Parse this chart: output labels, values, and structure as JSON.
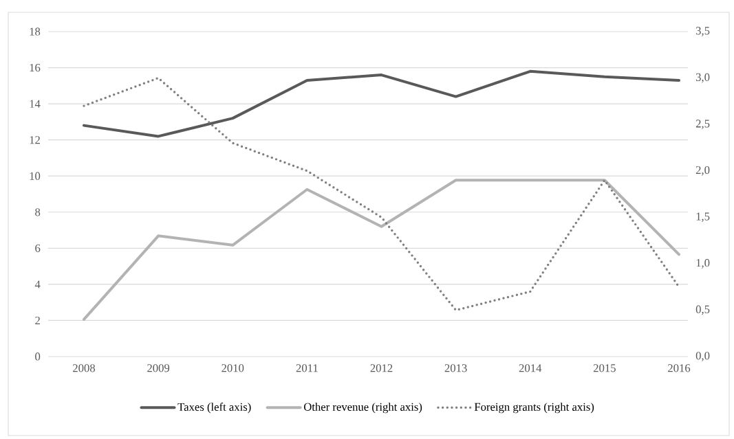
{
  "chart_data": {
    "type": "line",
    "categories": [
      "2008",
      "2009",
      "2010",
      "2011",
      "2012",
      "2013",
      "2014",
      "2015",
      "2016"
    ],
    "ylim": [
      0,
      18
    ],
    "yticks": [
      0,
      2,
      4,
      6,
      8,
      10,
      12,
      14,
      16,
      18
    ],
    "y2lim": [
      0,
      3.5
    ],
    "y2ticks": [
      {
        "value": 0,
        "label": "0,0"
      },
      {
        "value": 0.5,
        "label": "0,5"
      },
      {
        "value": 1,
        "label": "1,0"
      },
      {
        "value": 1.5,
        "label": "1,5"
      },
      {
        "value": 2,
        "label": "2,0"
      },
      {
        "value": 2.5,
        "label": "2,5"
      },
      {
        "value": 3,
        "label": "3,0"
      },
      {
        "value": 3.5,
        "label": "3,5"
      }
    ],
    "grid": "y",
    "legend": "bottom",
    "series": [
      {
        "name": "Taxes (left axis)",
        "color": "#595959",
        "line_style": "solid",
        "values": [
          12.8,
          12.2,
          13.2,
          15.3,
          15.6,
          14.4,
          15.8,
          15.5,
          15.3
        ]
      },
      {
        "name": "Other revenue (right axis)",
        "color": "#b3b3b3",
        "line_style": "solid",
        "axis": "y2",
        "values": [
          0.4,
          1.3,
          1.2,
          1.8,
          1.4,
          1.9,
          1.9,
          1.9,
          1.1
        ]
      },
      {
        "name": "Foreign grants (right axis)",
        "color": "#808080",
        "line_style": "dotted",
        "axis": "y2",
        "values": [
          2.7,
          3.0,
          2.3,
          2.0,
          1.5,
          0.5,
          0.7,
          1.9,
          0.75
        ]
      }
    ]
  }
}
